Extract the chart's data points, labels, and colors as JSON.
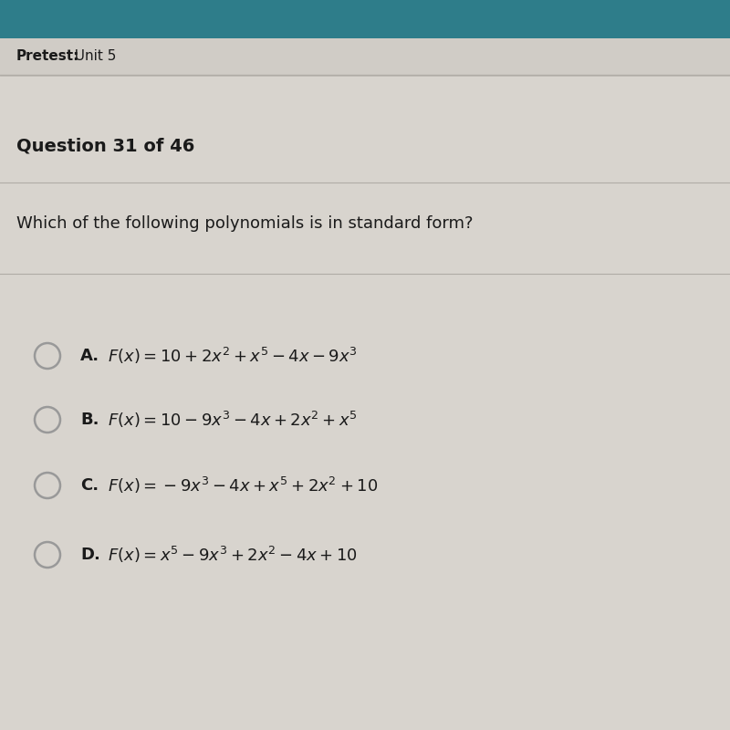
{
  "header_label": "Pretest:",
  "header_value": "  Unit 5",
  "question_number": "Question 31 of 46",
  "question_text": "Which of the following polynomials is in standard form?",
  "options": [
    {
      "letter": "A.",
      "formula": "$F(x) = 10+2x^2 + x^5 - 4x - 9x^3$"
    },
    {
      "letter": "B.",
      "formula": "$F(x) = 10-9x^3 - 4x+2x^2 + x^5$"
    },
    {
      "letter": "C.",
      "formula": "$F(x) = -9x^3 - 4x + x^5 +2x^2 +10$"
    },
    {
      "letter": "D.",
      "formula": "$F(x) = x^5 -9x^3 +2x^2 - 4x+10$"
    }
  ],
  "teal_color": "#2e7d8a",
  "bg_color": "#d8d4ce",
  "header_bg": "#ccc8c2",
  "circle_edge_color": "#999999",
  "circle_fill_color": "#d8d4ce",
  "divider_color": "#b0aca6",
  "text_color": "#1a1a1a"
}
